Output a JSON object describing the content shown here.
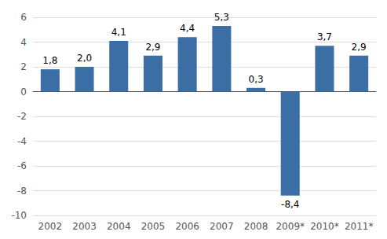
{
  "chart_data": {
    "type": "bar",
    "categories": [
      "2002",
      "2003",
      "2004",
      "2005",
      "2006",
      "2007",
      "2008",
      "2009*",
      "2010*",
      "2011*"
    ],
    "values": [
      1.8,
      2.0,
      4.1,
      2.9,
      4.4,
      5.3,
      0.3,
      -8.4,
      3.7,
      2.9
    ],
    "value_labels": [
      "1,8",
      "2,0",
      "4,1",
      "2,9",
      "4,4",
      "5,3",
      "0,3",
      "-8,4",
      "3,7",
      "2,9"
    ],
    "data_labels": true,
    "color": "#3a6ea5",
    "ylim": [
      -10,
      6
    ],
    "yticks": [
      -10,
      -8,
      -6,
      -4,
      -2,
      0,
      2,
      4,
      6
    ],
    "grid": true
  }
}
